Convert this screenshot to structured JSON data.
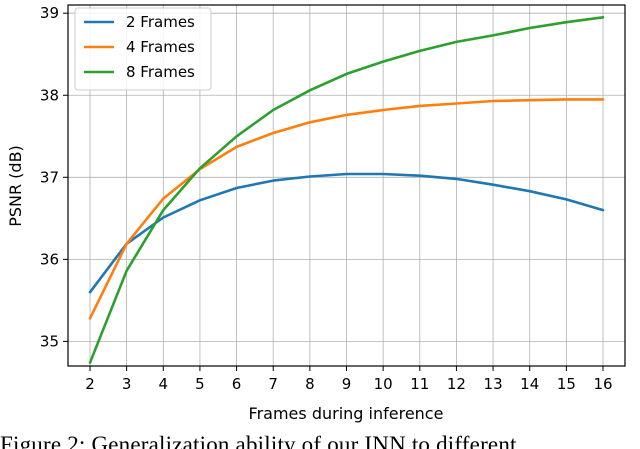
{
  "chart_data": {
    "type": "line",
    "xlabel": "Frames during inference",
    "ylabel": "PSNR (dB)",
    "xlim": [
      1.4,
      16.6
    ],
    "ylim": [
      34.7,
      39.1
    ],
    "x_ticks": [
      2,
      3,
      4,
      5,
      6,
      7,
      8,
      9,
      10,
      11,
      12,
      13,
      14,
      15,
      16
    ],
    "y_ticks": [
      35,
      36,
      37,
      38,
      39
    ],
    "grid": true,
    "legend_position": "top-left",
    "x": [
      2,
      3,
      4,
      5,
      6,
      7,
      8,
      9,
      10,
      11,
      12,
      13,
      14,
      15,
      16
    ],
    "series": [
      {
        "name": "2 Frames",
        "color": "#1f77b4",
        "values": [
          35.6,
          36.19,
          36.51,
          36.72,
          36.87,
          36.96,
          37.01,
          37.04,
          37.04,
          37.02,
          36.98,
          36.91,
          36.83,
          36.73,
          36.6
        ]
      },
      {
        "name": "4 Frames",
        "color": "#ff7f0e",
        "values": [
          35.28,
          36.19,
          36.74,
          37.1,
          37.37,
          37.54,
          37.67,
          37.76,
          37.82,
          37.87,
          37.9,
          37.93,
          37.94,
          37.95,
          37.95
        ]
      },
      {
        "name": "8 Frames",
        "color": "#2ca02c",
        "values": [
          34.74,
          35.86,
          36.6,
          37.11,
          37.5,
          37.82,
          38.06,
          38.26,
          38.41,
          38.54,
          38.65,
          38.73,
          38.82,
          38.89,
          38.95
        ]
      }
    ]
  },
  "caption": "Figure 2: Generalization ability of our INN to different"
}
